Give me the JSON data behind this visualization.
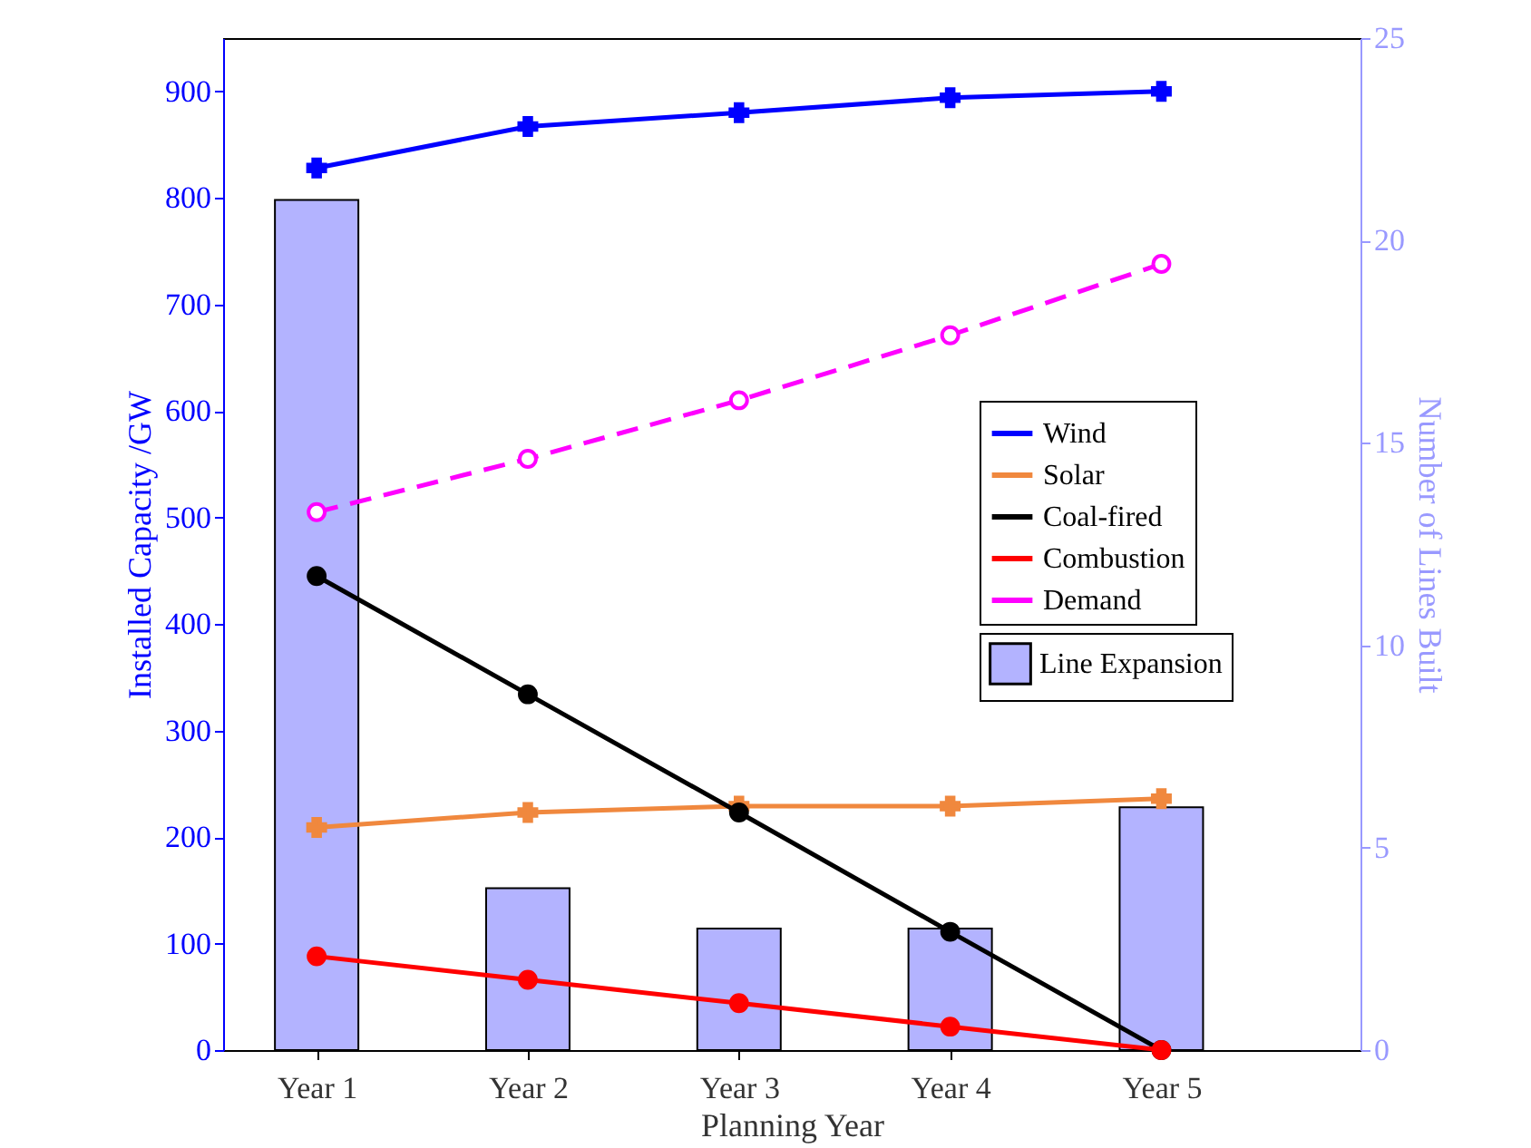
{
  "chart_data": {
    "type": "line",
    "xlabel": "Planning Year",
    "ylabel": "Installed Capacity /GW",
    "y2label": "Number of Lines Built",
    "categories": [
      "Year 1",
      "Year 2",
      "Year 3",
      "Year 4",
      "Year 5"
    ],
    "series": [
      {
        "name": "Line Expansion",
        "type": "bar",
        "axis": "y2",
        "color": "#b3b3ff",
        "values": [
          21,
          4,
          3,
          3,
          6
        ]
      },
      {
        "name": "Wind",
        "color": "#0000ff",
        "marker": "cross",
        "line_style": "solid",
        "values": [
          828,
          867,
          880,
          894,
          900
        ]
      },
      {
        "name": "Solar",
        "color": "#f0883e",
        "marker": "cross",
        "line_style": "solid",
        "values": [
          209,
          223,
          229,
          229,
          236
        ]
      },
      {
        "name": "Coal-fired",
        "color": "#000000",
        "marker": "circle",
        "line_style": "solid",
        "values": [
          445,
          334,
          223,
          111,
          0
        ]
      },
      {
        "name": "Combustion",
        "color": "#ff0000",
        "marker": "circle",
        "line_style": "solid",
        "values": [
          88,
          66,
          44,
          22,
          0
        ]
      },
      {
        "name": "Demand",
        "color": "#ff00ff",
        "marker": "open circle",
        "line_style": "dashed",
        "values": [
          505,
          555,
          610,
          671,
          738
        ]
      }
    ],
    "ylim": [
      0,
      950
    ],
    "yticks": [
      0,
      100,
      200,
      300,
      400,
      500,
      600,
      700,
      800,
      900
    ],
    "y2lim": [
      0,
      25
    ],
    "y2ticks": [
      0,
      5,
      10,
      15,
      20,
      25
    ],
    "grid": false,
    "legend": "right"
  }
}
